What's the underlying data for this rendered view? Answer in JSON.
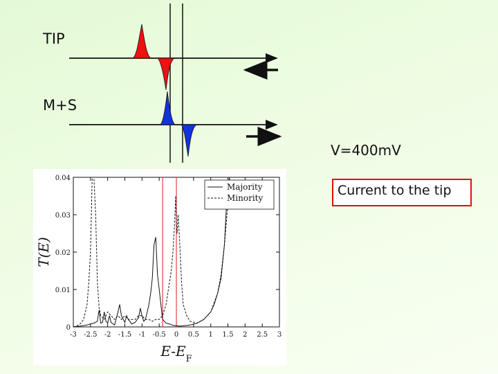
{
  "labels": {
    "tip": "TIP",
    "ms": "M+S",
    "voltage": "V=400mV",
    "note": "Current to the tip"
  },
  "colors": {
    "tip_dos": "#ee1111",
    "ms_dos": "#1133dd",
    "note_border": "#e01010",
    "fermi_markers": "#e04040",
    "background": "#e4fad6"
  },
  "chart_data": {
    "type": "line",
    "title": "",
    "xlabel": "E-E_F",
    "ylabel": "T(E)",
    "xlim": [
      -3,
      3
    ],
    "ylim": [
      0,
      0.04
    ],
    "x_ticks": [
      "-3",
      "-2.5",
      "-2",
      "-1.5",
      "-1",
      "-0.5",
      "0",
      "0.5",
      "1",
      "1.5",
      "2",
      "2.5",
      "3"
    ],
    "y_ticks": [
      "0",
      "0.01",
      "0.02",
      "0.03",
      "0.04"
    ],
    "grid": false,
    "legend_position": "top-right",
    "vertical_markers": [
      -0.4,
      0.0
    ],
    "series": [
      {
        "name": "Majority",
        "style": "solid",
        "x": [
          -3.0,
          -2.8,
          -2.6,
          -2.5,
          -2.4,
          -2.3,
          -2.25,
          -2.2,
          -2.15,
          -2.1,
          -2.05,
          -2.0,
          -1.95,
          -1.9,
          -1.8,
          -1.7,
          -1.65,
          -1.6,
          -1.5,
          -1.45,
          -1.4,
          -1.3,
          -1.2,
          -1.1,
          -1.05,
          -1.0,
          -0.95,
          -0.9,
          -0.8,
          -0.75,
          -0.7,
          -0.65,
          -0.6,
          -0.55,
          -0.5,
          -0.45,
          -0.4,
          -0.35,
          -0.3,
          -0.2,
          -0.1,
          0.0,
          0.1,
          0.2,
          0.4,
          0.6,
          0.8,
          0.9,
          1.0,
          1.1,
          1.2,
          1.3,
          1.4,
          1.45,
          1.5,
          1.55,
          1.6
        ],
        "y": [
          0.0,
          0.0002,
          0.0005,
          0.0008,
          0.001,
          0.0015,
          0.0045,
          0.001,
          0.0012,
          0.004,
          0.0015,
          0.001,
          0.003,
          0.0012,
          0.0005,
          0.004,
          0.006,
          0.003,
          0.0012,
          0.003,
          0.002,
          0.0008,
          0.0012,
          0.0025,
          0.005,
          0.003,
          0.0015,
          0.002,
          0.006,
          0.009,
          0.013,
          0.022,
          0.024,
          0.014,
          0.01,
          0.006,
          0.002,
          0.0015,
          0.001,
          0.0008,
          0.0004,
          0.0003,
          0.0002,
          0.0003,
          0.0005,
          0.001,
          0.002,
          0.003,
          0.004,
          0.006,
          0.009,
          0.013,
          0.022,
          0.031,
          0.038,
          0.04,
          0.04
        ]
      },
      {
        "name": "Minority",
        "style": "dashed",
        "x": [
          -3.0,
          -2.9,
          -2.8,
          -2.7,
          -2.6,
          -2.55,
          -2.5,
          -2.45,
          -2.4,
          -2.35,
          -2.3,
          -2.25,
          -2.2,
          -2.1,
          -2.0,
          -1.9,
          -1.8,
          -1.7,
          -1.6,
          -1.5,
          -1.4,
          -1.3,
          -1.2,
          -1.1,
          -1.0,
          -0.9,
          -0.8,
          -0.7,
          -0.6,
          -0.5,
          -0.4,
          -0.3,
          -0.25,
          -0.2,
          -0.15,
          -0.1,
          -0.05,
          -0.02,
          0.0,
          0.02,
          0.05,
          0.1,
          0.15,
          0.2,
          0.3,
          0.4,
          0.6,
          0.8,
          1.0,
          1.2,
          1.3,
          1.4,
          1.5,
          1.55,
          1.6
        ],
        "y": [
          0.0,
          0.0003,
          0.0008,
          0.002,
          0.006,
          0.012,
          0.02,
          0.04,
          0.04,
          0.03,
          0.012,
          0.005,
          0.003,
          0.002,
          0.004,
          0.003,
          0.002,
          0.003,
          0.002,
          0.003,
          0.002,
          0.002,
          0.002,
          0.003,
          0.003,
          0.002,
          0.002,
          0.0015,
          0.002,
          0.002,
          0.003,
          0.006,
          0.009,
          0.012,
          0.015,
          0.02,
          0.028,
          0.035,
          0.028,
          0.025,
          0.03,
          0.022,
          0.012,
          0.006,
          0.003,
          0.0015,
          0.001,
          0.002,
          0.004,
          0.009,
          0.014,
          0.022,
          0.033,
          0.04,
          0.04
        ]
      }
    ]
  }
}
